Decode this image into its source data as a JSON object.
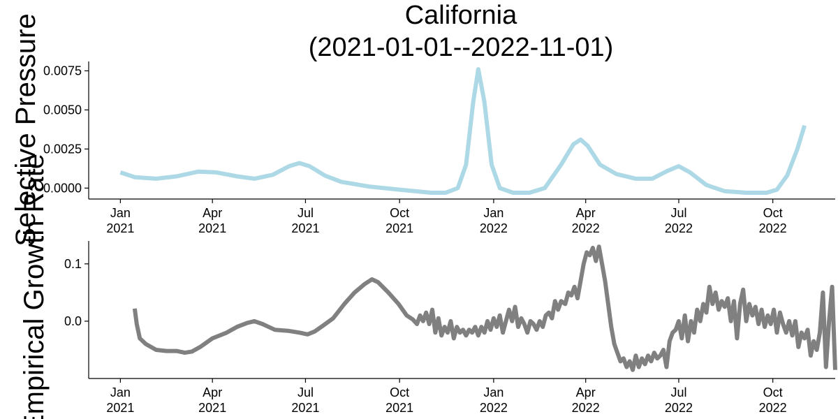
{
  "chart_data": [
    {
      "type": "line",
      "title": [
        "California",
        "(2021-01-01--2022-11-01)"
      ],
      "ylabel": "Selective Pressure",
      "ylim": [
        -0.0007,
        0.0081
      ],
      "yticks": [
        0.0,
        0.0025,
        0.005,
        0.0075
      ],
      "ytick_labels": [
        "0.0000",
        "0.0025",
        "0.0050",
        "0.0075"
      ],
      "xlim": [
        "2020-12-01",
        "2022-12-01"
      ],
      "xticks": [
        "2021-01-01",
        "2021-04-01",
        "2021-07-01",
        "2021-10-01",
        "2022-01-01",
        "2022-04-01",
        "2022-07-01",
        "2022-10-01"
      ],
      "xtick_labels": [
        [
          "Jan",
          "2021"
        ],
        [
          "Apr",
          "2021"
        ],
        [
          "Jul",
          "2021"
        ],
        [
          "Oct",
          "2021"
        ],
        [
          "Jan",
          "2022"
        ],
        [
          "Apr",
          "2022"
        ],
        [
          "Jul",
          "2022"
        ],
        [
          "Oct",
          "2022"
        ]
      ],
      "grid": false,
      "series": [
        {
          "color": "#add8e6",
          "points": [
            [
              "2021-01-01",
              0.001
            ],
            [
              "2021-01-15",
              0.0007
            ],
            [
              "2021-02-05",
              0.0006
            ],
            [
              "2021-02-25",
              0.00075
            ],
            [
              "2021-03-18",
              0.00105
            ],
            [
              "2021-04-05",
              0.001
            ],
            [
              "2021-04-25",
              0.00075
            ],
            [
              "2021-05-12",
              0.0006
            ],
            [
              "2021-05-30",
              0.00085
            ],
            [
              "2021-06-15",
              0.0014
            ],
            [
              "2021-06-25",
              0.0016
            ],
            [
              "2021-07-05",
              0.0014
            ],
            [
              "2021-07-20",
              0.0008
            ],
            [
              "2021-08-05",
              0.0004
            ],
            [
              "2021-09-01",
              0.0001
            ],
            [
              "2021-10-01",
              -0.0001
            ],
            [
              "2021-11-01",
              -0.0003
            ],
            [
              "2021-11-15",
              -0.0003
            ],
            [
              "2021-11-27",
              0.0
            ],
            [
              "2021-12-05",
              0.0015
            ],
            [
              "2021-12-12",
              0.0055
            ],
            [
              "2021-12-17",
              0.0076
            ],
            [
              "2021-12-23",
              0.0055
            ],
            [
              "2021-12-30",
              0.0015
            ],
            [
              "2022-01-07",
              0.0
            ],
            [
              "2022-01-20",
              -0.0003
            ],
            [
              "2022-02-05",
              -0.0003
            ],
            [
              "2022-02-20",
              0.0
            ],
            [
              "2022-03-08",
              0.0015
            ],
            [
              "2022-03-20",
              0.0028
            ],
            [
              "2022-03-27",
              0.0031
            ],
            [
              "2022-04-03",
              0.0027
            ],
            [
              "2022-04-15",
              0.0015
            ],
            [
              "2022-05-01",
              0.0009
            ],
            [
              "2022-05-20",
              0.0006
            ],
            [
              "2022-06-05",
              0.0006
            ],
            [
              "2022-06-20",
              0.0011
            ],
            [
              "2022-07-01",
              0.0014
            ],
            [
              "2022-07-12",
              0.001
            ],
            [
              "2022-07-28",
              0.0002
            ],
            [
              "2022-08-15",
              -0.0002
            ],
            [
              "2022-09-05",
              -0.0003
            ],
            [
              "2022-09-25",
              -0.0003
            ],
            [
              "2022-10-05",
              -0.0001
            ],
            [
              "2022-10-15",
              0.0008
            ],
            [
              "2022-10-25",
              0.0025
            ],
            [
              "2022-11-01",
              0.004
            ]
          ]
        }
      ]
    },
    {
      "type": "line",
      "ylabel": "Empirical Growth Rate",
      "ylim": [
        -0.1,
        0.14
      ],
      "yticks": [
        0.0,
        0.1
      ],
      "ytick_labels": [
        "0.0",
        "0.1"
      ],
      "xlim": [
        "2020-12-01",
        "2022-12-01"
      ],
      "xticks": [
        "2021-01-01",
        "2021-04-01",
        "2021-07-01",
        "2021-10-01",
        "2022-01-01",
        "2022-04-01",
        "2022-07-01",
        "2022-10-01"
      ],
      "xtick_labels": [
        [
          "Jan",
          "2021"
        ],
        [
          "Apr",
          "2021"
        ],
        [
          "Jul",
          "2021"
        ],
        [
          "Oct",
          "2021"
        ],
        [
          "Jan",
          "2022"
        ],
        [
          "Apr",
          "2022"
        ],
        [
          "Jul",
          "2022"
        ],
        [
          "Oct",
          "2022"
        ]
      ],
      "grid": false,
      "series": [
        {
          "color": "#808080",
          "points": [
            [
              "2021-01-15",
              0.022
            ],
            [
              "2021-01-17",
              -0.005
            ],
            [
              "2021-01-20",
              -0.03
            ],
            [
              "2021-01-26",
              -0.04
            ],
            [
              "2021-02-05",
              -0.05
            ],
            [
              "2021-02-15",
              -0.052
            ],
            [
              "2021-02-25",
              -0.052
            ],
            [
              "2021-03-05",
              -0.055
            ],
            [
              "2021-03-12",
              -0.053
            ],
            [
              "2021-03-20",
              -0.045
            ],
            [
              "2021-04-01",
              -0.03
            ],
            [
              "2021-04-15",
              -0.02
            ],
            [
              "2021-04-25",
              -0.01
            ],
            [
              "2021-05-05",
              -0.003
            ],
            [
              "2021-05-12",
              0.0
            ],
            [
              "2021-05-20",
              -0.005
            ],
            [
              "2021-06-01",
              -0.015
            ],
            [
              "2021-06-15",
              -0.017
            ],
            [
              "2021-06-25",
              -0.02
            ],
            [
              "2021-07-03",
              -0.023
            ],
            [
              "2021-07-10",
              -0.018
            ],
            [
              "2021-07-18",
              -0.008
            ],
            [
              "2021-07-28",
              0.005
            ],
            [
              "2021-08-08",
              0.03
            ],
            [
              "2021-08-18",
              0.05
            ],
            [
              "2021-08-28",
              0.065
            ],
            [
              "2021-09-04",
              0.073
            ],
            [
              "2021-09-10",
              0.068
            ],
            [
              "2021-09-20",
              0.05
            ],
            [
              "2021-09-30",
              0.03
            ],
            [
              "2021-10-08",
              0.01
            ],
            [
              "2021-10-14",
              0.003
            ],
            [
              "2021-10-18",
              -0.005
            ],
            [
              "2021-10-21",
              0.01
            ],
            [
              "2021-10-24",
              0.0
            ],
            [
              "2021-10-27",
              0.015
            ],
            [
              "2021-10-30",
              -0.005
            ],
            [
              "2021-11-02",
              0.02
            ],
            [
              "2021-11-05",
              -0.02
            ],
            [
              "2021-11-08",
              0.005
            ],
            [
              "2021-11-11",
              -0.025
            ],
            [
              "2021-11-14",
              -0.01
            ],
            [
              "2021-11-17",
              -0.02
            ],
            [
              "2021-11-20",
              0.0
            ],
            [
              "2021-11-23",
              -0.03
            ],
            [
              "2021-11-26",
              -0.01
            ],
            [
              "2021-11-29",
              -0.02
            ],
            [
              "2021-12-02",
              -0.015
            ],
            [
              "2021-12-05",
              -0.025
            ],
            [
              "2021-12-08",
              -0.015
            ],
            [
              "2021-12-11",
              -0.02
            ],
            [
              "2021-12-14",
              -0.01
            ],
            [
              "2021-12-17",
              -0.025
            ],
            [
              "2021-12-20",
              -0.01
            ],
            [
              "2021-12-23",
              -0.02
            ],
            [
              "2021-12-26",
              0.0
            ],
            [
              "2021-12-29",
              -0.015
            ],
            [
              "2022-01-01",
              0.005
            ],
            [
              "2022-01-04",
              -0.01
            ],
            [
              "2022-01-07",
              0.01
            ],
            [
              "2022-01-10",
              -0.02
            ],
            [
              "2022-01-13",
              0.0
            ],
            [
              "2022-01-16",
              0.02
            ],
            [
              "2022-01-19",
              0.0
            ],
            [
              "2022-01-22",
              0.025
            ],
            [
              "2022-01-25",
              -0.01
            ],
            [
              "2022-01-28",
              0.005
            ],
            [
              "2022-01-31",
              -0.005
            ],
            [
              "2022-02-03",
              -0.02
            ],
            [
              "2022-02-06",
              0.0
            ],
            [
              "2022-02-09",
              -0.005
            ],
            [
              "2022-02-12",
              -0.015
            ],
            [
              "2022-02-15",
              0.0
            ],
            [
              "2022-02-18",
              -0.01
            ],
            [
              "2022-02-21",
              0.01
            ],
            [
              "2022-02-24",
              0.015
            ],
            [
              "2022-02-27",
              0.005
            ],
            [
              "2022-03-02",
              0.035
            ],
            [
              "2022-03-05",
              0.02
            ],
            [
              "2022-03-08",
              0.035
            ],
            [
              "2022-03-12",
              0.03
            ],
            [
              "2022-03-15",
              0.05
            ],
            [
              "2022-03-18",
              0.045
            ],
            [
              "2022-03-21",
              0.06
            ],
            [
              "2022-03-24",
              0.04
            ],
            [
              "2022-03-27",
              0.07
            ],
            [
              "2022-03-30",
              0.1
            ],
            [
              "2022-04-02",
              0.12
            ],
            [
              "2022-04-05",
              0.115
            ],
            [
              "2022-04-08",
              0.128
            ],
            [
              "2022-04-11",
              0.105
            ],
            [
              "2022-04-14",
              0.13
            ],
            [
              "2022-04-17",
              0.1
            ],
            [
              "2022-04-20",
              0.07
            ],
            [
              "2022-04-23",
              0.03
            ],
            [
              "2022-04-26",
              -0.01
            ],
            [
              "2022-04-29",
              -0.04
            ],
            [
              "2022-05-02",
              -0.055
            ],
            [
              "2022-05-05",
              -0.07
            ],
            [
              "2022-05-08",
              -0.065
            ],
            [
              "2022-05-11",
              -0.08
            ],
            [
              "2022-05-14",
              -0.07
            ],
            [
              "2022-05-17",
              -0.085
            ],
            [
              "2022-05-20",
              -0.06
            ],
            [
              "2022-05-23",
              -0.08
            ],
            [
              "2022-05-26",
              -0.065
            ],
            [
              "2022-05-29",
              -0.075
            ],
            [
              "2022-06-01",
              -0.06
            ],
            [
              "2022-06-04",
              -0.07
            ],
            [
              "2022-06-07",
              -0.055
            ],
            [
              "2022-06-10",
              -0.065
            ],
            [
              "2022-06-13",
              -0.06
            ],
            [
              "2022-06-16",
              -0.05
            ],
            [
              "2022-06-19",
              -0.08
            ],
            [
              "2022-06-22",
              -0.035
            ],
            [
              "2022-06-25",
              -0.02
            ],
            [
              "2022-06-28",
              -0.015
            ],
            [
              "2022-07-01",
              0.0
            ],
            [
              "2022-07-04",
              -0.03
            ],
            [
              "2022-07-07",
              0.01
            ],
            [
              "2022-07-10",
              -0.035
            ],
            [
              "2022-07-13",
              0.0
            ],
            [
              "2022-07-16",
              -0.02
            ],
            [
              "2022-07-19",
              0.02
            ],
            [
              "2022-07-22",
              0.0
            ],
            [
              "2022-07-25",
              0.03
            ],
            [
              "2022-07-28",
              0.015
            ],
            [
              "2022-07-31",
              0.06
            ],
            [
              "2022-08-03",
              0.03
            ],
            [
              "2022-08-06",
              0.05
            ],
            [
              "2022-08-09",
              0.02
            ],
            [
              "2022-08-12",
              0.035
            ],
            [
              "2022-08-15",
              0.025
            ],
            [
              "2022-08-18",
              0.04
            ],
            [
              "2022-08-21",
              0.0
            ],
            [
              "2022-08-24",
              0.035
            ],
            [
              "2022-08-27",
              -0.03
            ],
            [
              "2022-08-30",
              0.03
            ],
            [
              "2022-09-02",
              0.055
            ],
            [
              "2022-09-05",
              0.0
            ],
            [
              "2022-09-08",
              0.03
            ],
            [
              "2022-09-11",
              0.01
            ],
            [
              "2022-09-14",
              0.025
            ],
            [
              "2022-09-17",
              -0.005
            ],
            [
              "2022-09-20",
              0.02
            ],
            [
              "2022-09-23",
              -0.01
            ],
            [
              "2022-09-26",
              0.01
            ],
            [
              "2022-09-29",
              -0.005
            ],
            [
              "2022-10-02",
              0.02
            ],
            [
              "2022-10-05",
              -0.02
            ],
            [
              "2022-10-08",
              0.015
            ],
            [
              "2022-10-11",
              -0.005
            ],
            [
              "2022-10-14",
              -0.02
            ],
            [
              "2022-10-17",
              0.0
            ],
            [
              "2022-10-20",
              -0.025
            ],
            [
              "2022-10-23",
              0.0
            ],
            [
              "2022-10-26",
              -0.045
            ],
            [
              "2022-10-29",
              -0.02
            ],
            [
              "2022-11-01",
              -0.03
            ],
            [
              "2022-11-04",
              -0.015
            ],
            [
              "2022-11-07",
              -0.06
            ],
            [
              "2022-11-10",
              -0.035
            ],
            [
              "2022-11-13",
              -0.05
            ],
            [
              "2022-11-16",
              -0.02
            ],
            [
              "2022-11-19",
              0.05
            ],
            [
              "2022-11-22",
              -0.08
            ],
            [
              "2022-11-25",
              0.0
            ],
            [
              "2022-11-28",
              0.06
            ],
            [
              "2022-12-01",
              -0.085
            ]
          ]
        }
      ]
    }
  ]
}
